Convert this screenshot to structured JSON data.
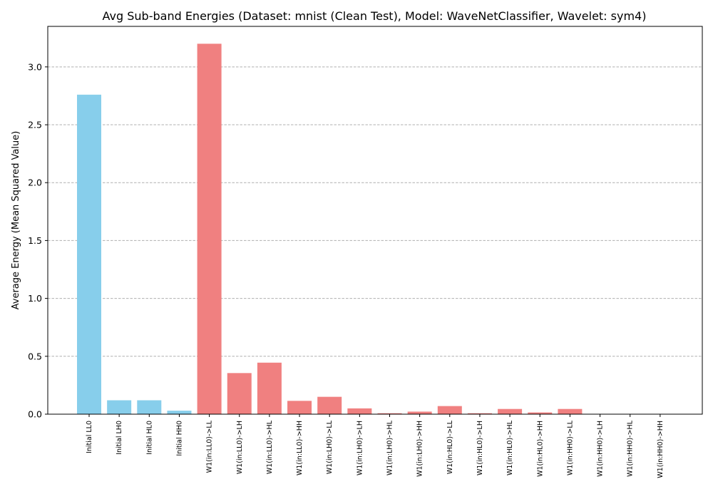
{
  "chart_data": {
    "type": "bar",
    "title": "Avg Sub-band Energies (Dataset: mnist (Clean Test), Model: WaveNetClassifier, Wavelet: sym4)",
    "xlabel": "",
    "ylabel": "Average Energy (Mean Squared Value)",
    "ylim": [
      0,
      3.35
    ],
    "yticks": [
      "0.0",
      "0.5",
      "1.0",
      "1.5",
      "2.0",
      "2.5",
      "3.0"
    ],
    "grid": "y-dashed",
    "colors": {
      "initial": "#87ceeb",
      "w1": "#f08080"
    },
    "categories": [
      "Initial LL0",
      "Initial LH0",
      "Initial HL0",
      "Initial HH0",
      "W1(in:LL0)->LL",
      "W1(in:LL0)->LH",
      "W1(in:LL0)->HL",
      "W1(in:LL0)->HH",
      "W1(in:LH0)->LL",
      "W1(in:LH0)->LH",
      "W1(in:LH0)->HL",
      "W1(in:LH0)->HH",
      "W1(in:HL0)->LL",
      "W1(in:HL0)->LH",
      "W1(in:HL0)->HL",
      "W1(in:HL0)->HH",
      "W1(in:HH0)->LL",
      "W1(in:HH0)->LH",
      "W1(in:HH0)->HL",
      "W1(in:HH0)->HH"
    ],
    "values": [
      2.76,
      0.12,
      0.12,
      0.03,
      3.2,
      0.355,
      0.445,
      0.115,
      0.15,
      0.05,
      0.008,
      0.022,
      0.07,
      0.008,
      0.045,
      0.015,
      0.045,
      0.0,
      0.0,
      0.0
    ],
    "groups": [
      "initial",
      "initial",
      "initial",
      "initial",
      "w1",
      "w1",
      "w1",
      "w1",
      "w1",
      "w1",
      "w1",
      "w1",
      "w1",
      "w1",
      "w1",
      "w1",
      "w1",
      "w1",
      "w1",
      "w1"
    ]
  }
}
